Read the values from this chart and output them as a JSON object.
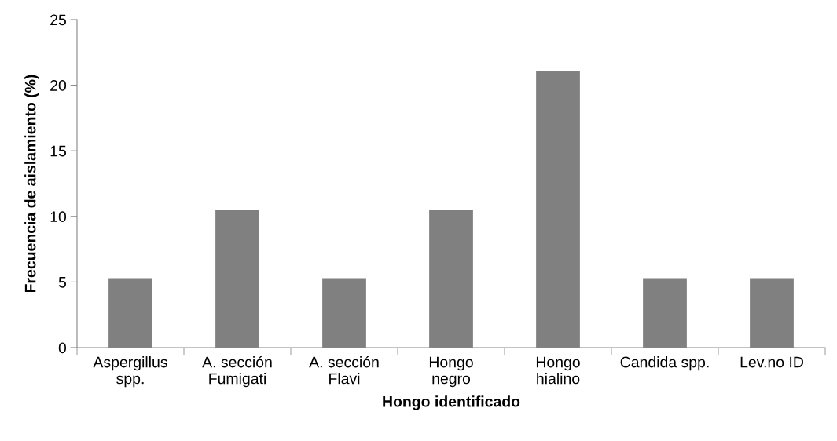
{
  "chart_data": {
    "type": "bar",
    "xlabel": "Hongo identificado",
    "ylabel": "Frecuencia de aislamiento (%)",
    "categories": [
      "Aspergillus\nspp.",
      "A. sección\nFumigati",
      "A. sección\nFlavi",
      "Hongo\nnegro",
      "Hongo\nhialino",
      "Candida spp.",
      "Lev.no ID"
    ],
    "values": [
      5.3,
      10.5,
      5.3,
      10.5,
      21.1,
      5.3,
      5.3
    ],
    "color": "#808080",
    "ylim": [
      0,
      25
    ],
    "yticks": [
      0,
      5,
      10,
      15,
      20,
      25
    ],
    "grid": false,
    "legend": false
  }
}
